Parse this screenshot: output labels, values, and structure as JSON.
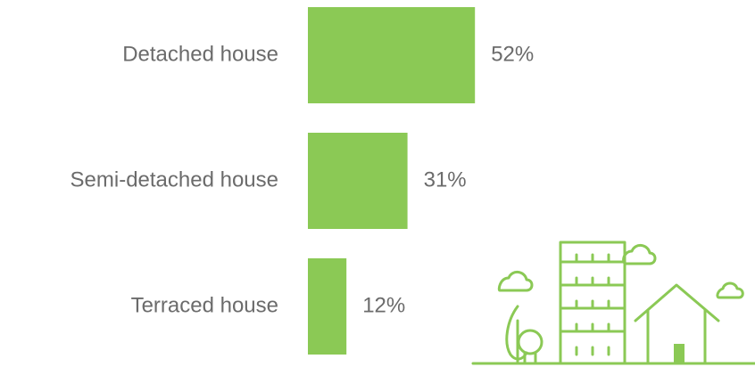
{
  "chart_data": {
    "type": "bar",
    "orientation": "horizontal",
    "categories": [
      "Detached house",
      "Semi-detached house",
      "Terraced house"
    ],
    "values": [
      52,
      31,
      12
    ],
    "value_labels": [
      "52%",
      "31%",
      "12%"
    ],
    "color": "#8bc955"
  }
}
